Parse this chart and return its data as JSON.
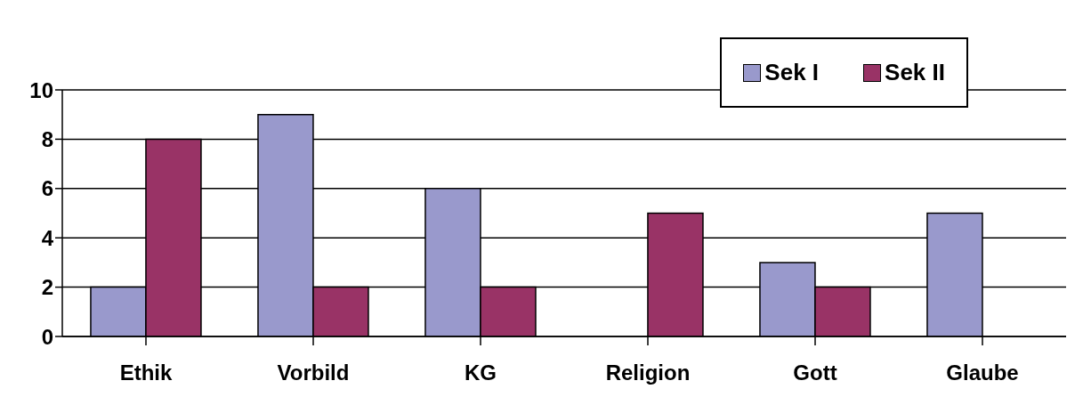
{
  "chart_data": {
    "type": "bar",
    "categories": [
      "Ethik",
      "Vorbild",
      "KG",
      "Religion",
      "Gott",
      "Glaube"
    ],
    "series": [
      {
        "name": "Sek I",
        "color": "#9999cc",
        "values": [
          2,
          9,
          6,
          0,
          3,
          5
        ]
      },
      {
        "name": "Sek II",
        "color": "#993366",
        "values": [
          8,
          2,
          2,
          5,
          2,
          0
        ]
      }
    ],
    "ylim": [
      0,
      10
    ],
    "yticks": [
      0,
      2,
      4,
      6,
      8,
      10
    ],
    "grid": "y",
    "legend": "top right"
  }
}
